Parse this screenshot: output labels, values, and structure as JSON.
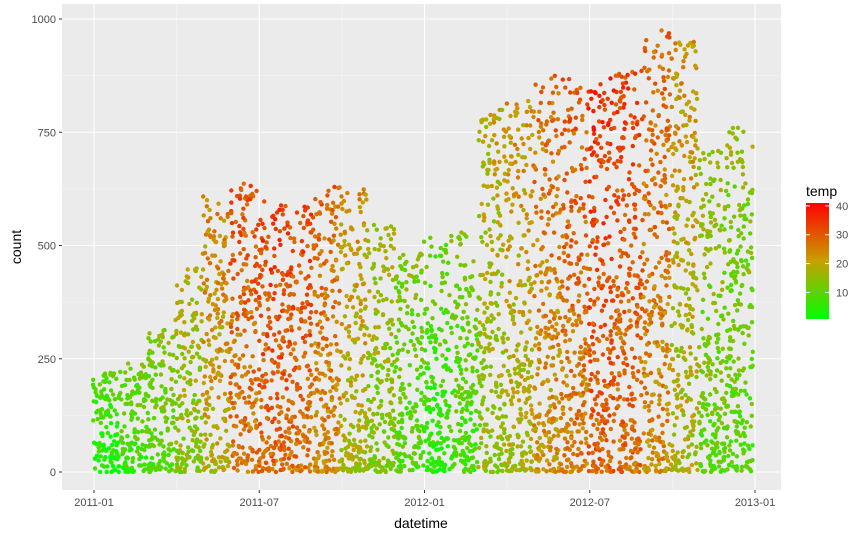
{
  "chart_data": {
    "type": "scatter",
    "title": "",
    "xlabel": "datetime",
    "ylabel": "count",
    "x_ticks": [
      "2011-01",
      "2011-07",
      "2012-01",
      "2012-07",
      "2013-01"
    ],
    "y_ticks": [
      0,
      250,
      500,
      750,
      1000
    ],
    "ylim": [
      0,
      1000
    ],
    "xlim": [
      "2011-01",
      "2013-01"
    ],
    "grid": true,
    "legend": {
      "title": "temp",
      "position": "right",
      "ticks": [
        10,
        20,
        30,
        40
      ],
      "range": [
        0.8,
        41
      ],
      "low_color": "#00ff00",
      "high_color": "#ff0000"
    },
    "monthly_clusters": [
      {
        "month": "2011-01",
        "temp": 6,
        "max_count": 220
      },
      {
        "month": "2011-02",
        "temp": 9,
        "max_count": 240
      },
      {
        "month": "2011-03",
        "temp": 11,
        "max_count": 325
      },
      {
        "month": "2011-04",
        "temp": 16,
        "max_count": 450
      },
      {
        "month": "2011-05",
        "temp": 22,
        "max_count": 610
      },
      {
        "month": "2011-06",
        "temp": 28,
        "max_count": 640
      },
      {
        "month": "2011-07",
        "temp": 31,
        "max_count": 600
      },
      {
        "month": "2011-08",
        "temp": 30,
        "max_count": 590
      },
      {
        "month": "2011-09",
        "temp": 26,
        "max_count": 630
      },
      {
        "month": "2011-10",
        "temp": 20,
        "max_count": 625
      },
      {
        "month": "2011-11",
        "temp": 15,
        "max_count": 550
      },
      {
        "month": "2011-12",
        "temp": 11,
        "max_count": 490
      },
      {
        "month": "2012-01",
        "temp": 8,
        "max_count": 520
      },
      {
        "month": "2012-02",
        "temp": 10,
        "max_count": 535
      },
      {
        "month": "2012-03",
        "temp": 17,
        "max_count": 800
      },
      {
        "month": "2012-04",
        "temp": 20,
        "max_count": 820
      },
      {
        "month": "2012-05",
        "temp": 25,
        "max_count": 875
      },
      {
        "month": "2012-06",
        "temp": 28,
        "max_count": 875
      },
      {
        "month": "2012-07",
        "temp": 32,
        "max_count": 870
      },
      {
        "month": "2012-08",
        "temp": 30,
        "max_count": 895
      },
      {
        "month": "2012-09",
        "temp": 26,
        "max_count": 975
      },
      {
        "month": "2012-10",
        "temp": 20,
        "max_count": 950
      },
      {
        "month": "2012-11",
        "temp": 13,
        "max_count": 720
      },
      {
        "month": "2012-12",
        "temp": 12,
        "max_count": 760
      }
    ]
  }
}
